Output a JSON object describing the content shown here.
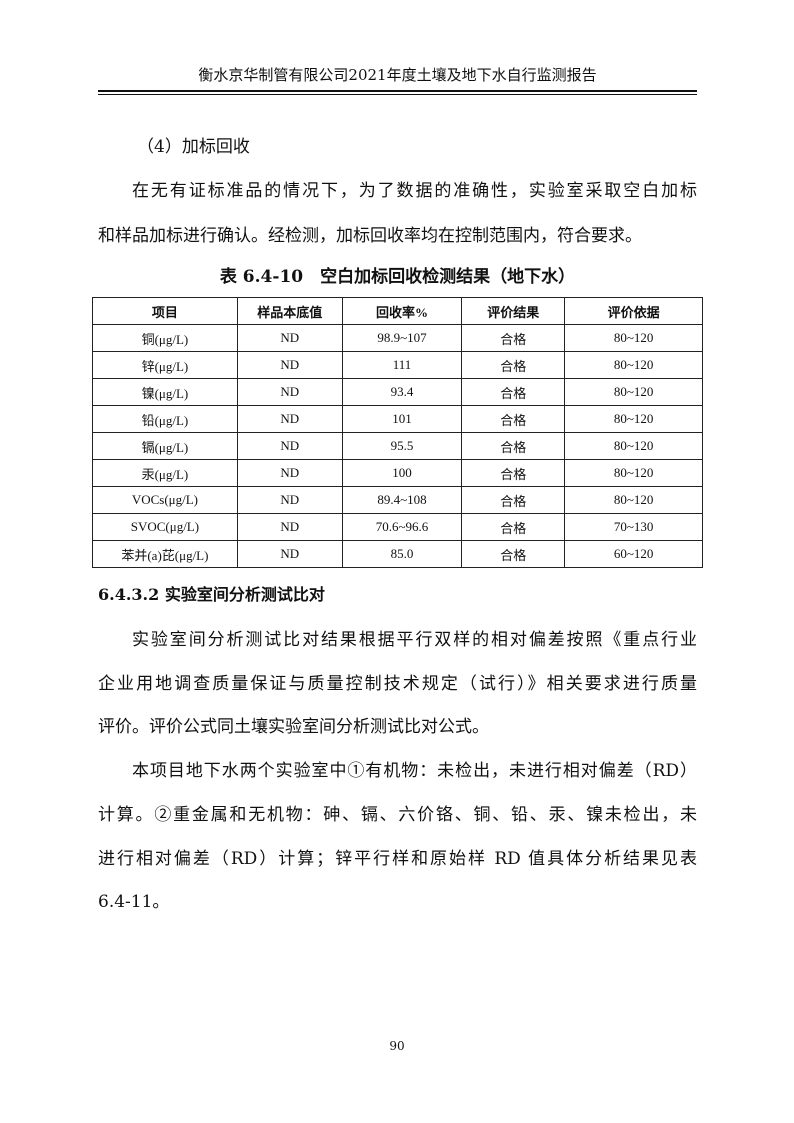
{
  "header": {
    "title": "衡水京华制管有限公司2021年度土壤及地下水自行监测报告"
  },
  "subheading": "（4）加标回收",
  "para1": [
    "在无有证标准品的情况下，为了数据的准确性，实验室采取空白加标",
    "和样品加标进行确认。经检测，加标回收率均在控制范围内，符合要求。"
  ],
  "table": {
    "title": "表 6.4-10　空白加标回收检测结果（地下水）",
    "columns": [
      "项目",
      "样品本底值",
      "回收率%",
      "评价结果",
      "评价依据"
    ],
    "rows": [
      [
        "铜(μg/L)",
        "ND",
        "98.9~107",
        "合格",
        "80~120"
      ],
      [
        "锌(μg/L)",
        "ND",
        "111",
        "合格",
        "80~120"
      ],
      [
        "镍(μg/L)",
        "ND",
        "93.4",
        "合格",
        "80~120"
      ],
      [
        "铅(μg/L)",
        "ND",
        "101",
        "合格",
        "80~120"
      ],
      [
        "镉(μg/L)",
        "ND",
        "95.5",
        "合格",
        "80~120"
      ],
      [
        "汞(μg/L)",
        "ND",
        "100",
        "合格",
        "80~120"
      ],
      [
        "VOCs(μg/L)",
        "ND",
        "89.4~108",
        "合格",
        "80~120"
      ],
      [
        "SVOC(μg/L)",
        "ND",
        "70.6~96.6",
        "合格",
        "70~130"
      ],
      [
        "苯并(a)芘(μg/L)",
        "ND",
        "85.0",
        "合格",
        "60~120"
      ]
    ]
  },
  "section": "6.4.3.2 实验室间分析测试比对",
  "para2": [
    "实验室间分析测试比对结果根据平行双样的相对偏差按照《重点行业",
    "企业用地调查质量保证与质量控制技术规定（试行）》相关要求进行质量",
    "评价。评价公式同土壤实验室间分析测试比对公式。"
  ],
  "para3": [
    "本项目地下水两个实验室中①有机物：未检出，未进行相对偏差（RD）",
    "计算。②重金属和无机物：砷、镉、六价铬、铜、铅、汞、镍未检出，未",
    "进行相对偏差（RD）计算；锌平行样和原始样 RD 值具体分析结果见表",
    "6.4-11。"
  ],
  "page_number": "90"
}
